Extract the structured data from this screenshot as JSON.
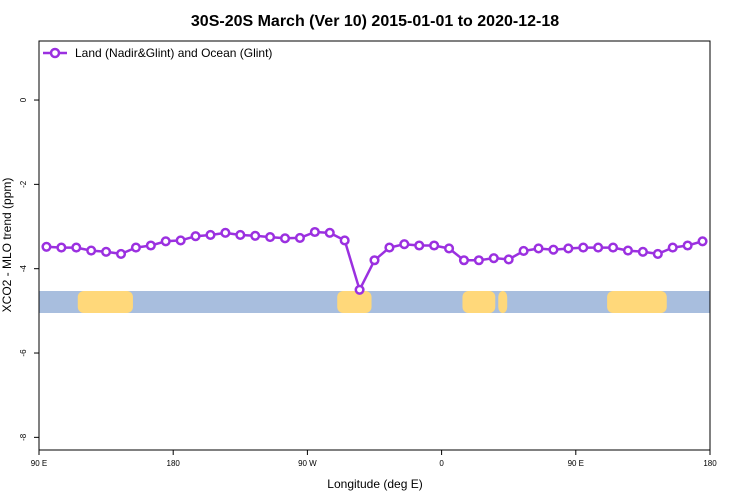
{
  "chart_data": {
    "type": "line",
    "title": "30S-20S March (Ver 10)   2015-01-01 to 2020-12-18",
    "xlabel": "Longitude (deg E)",
    "ylabel": "XCO2 - MLO trend (ppm)",
    "xlim": [
      90,
      540
    ],
    "ylim": [
      -8.3,
      1.4
    ],
    "x_ticks": [
      {
        "value": 90,
        "label": "90 E"
      },
      {
        "value": 180,
        "label": "180"
      },
      {
        "value": 270,
        "label": "90 W"
      },
      {
        "value": 360,
        "label": "0"
      },
      {
        "value": 450,
        "label": "90 E"
      },
      {
        "value": 540,
        "label": "180"
      }
    ],
    "y_ticks": [
      {
        "value": 0,
        "label": "0"
      },
      {
        "value": -2,
        "label": "-2"
      },
      {
        "value": -4,
        "label": "-4"
      },
      {
        "value": -6,
        "label": "-6"
      },
      {
        "value": -8,
        "label": "-8"
      }
    ],
    "legend": {
      "position": "top-left"
    },
    "series": [
      {
        "name": "Land (Nadir&Glint) and Ocean (Glint)",
        "color": "#9b30e0",
        "x": [
          95,
          105,
          115,
          125,
          135,
          145,
          155,
          165,
          175,
          185,
          195,
          205,
          215,
          225,
          235,
          245,
          255,
          265,
          275,
          285,
          295,
          305,
          315,
          325,
          335,
          345,
          355,
          365,
          375,
          385,
          395,
          405,
          415,
          425,
          435,
          445,
          455,
          465,
          475,
          485,
          495,
          505,
          515,
          525,
          535
        ],
        "y": [
          -3.48,
          -3.5,
          -3.5,
          -3.57,
          -3.6,
          -3.65,
          -3.5,
          -3.45,
          -3.35,
          -3.33,
          -3.23,
          -3.2,
          -3.15,
          -3.2,
          -3.22,
          -3.25,
          -3.28,
          -3.27,
          -3.13,
          -3.15,
          -3.33,
          -4.5,
          -3.8,
          -3.5,
          -3.42,
          -3.45,
          -3.45,
          -3.52,
          -3.8,
          -3.8,
          -3.75,
          -3.78,
          -3.58,
          -3.52,
          -3.55,
          -3.52,
          -3.5,
          -3.5,
          -3.5,
          -3.57,
          -3.6,
          -3.65,
          -3.5,
          -3.45,
          -3.35
        ]
      }
    ],
    "map_strip": {
      "ocean_color": "#a8bede",
      "land_color": "#ffd87a",
      "land_ranges": [
        [
          116,
          153
        ],
        [
          290,
          313
        ],
        [
          374,
          396
        ],
        [
          398,
          404
        ],
        [
          471,
          511
        ]
      ]
    }
  }
}
